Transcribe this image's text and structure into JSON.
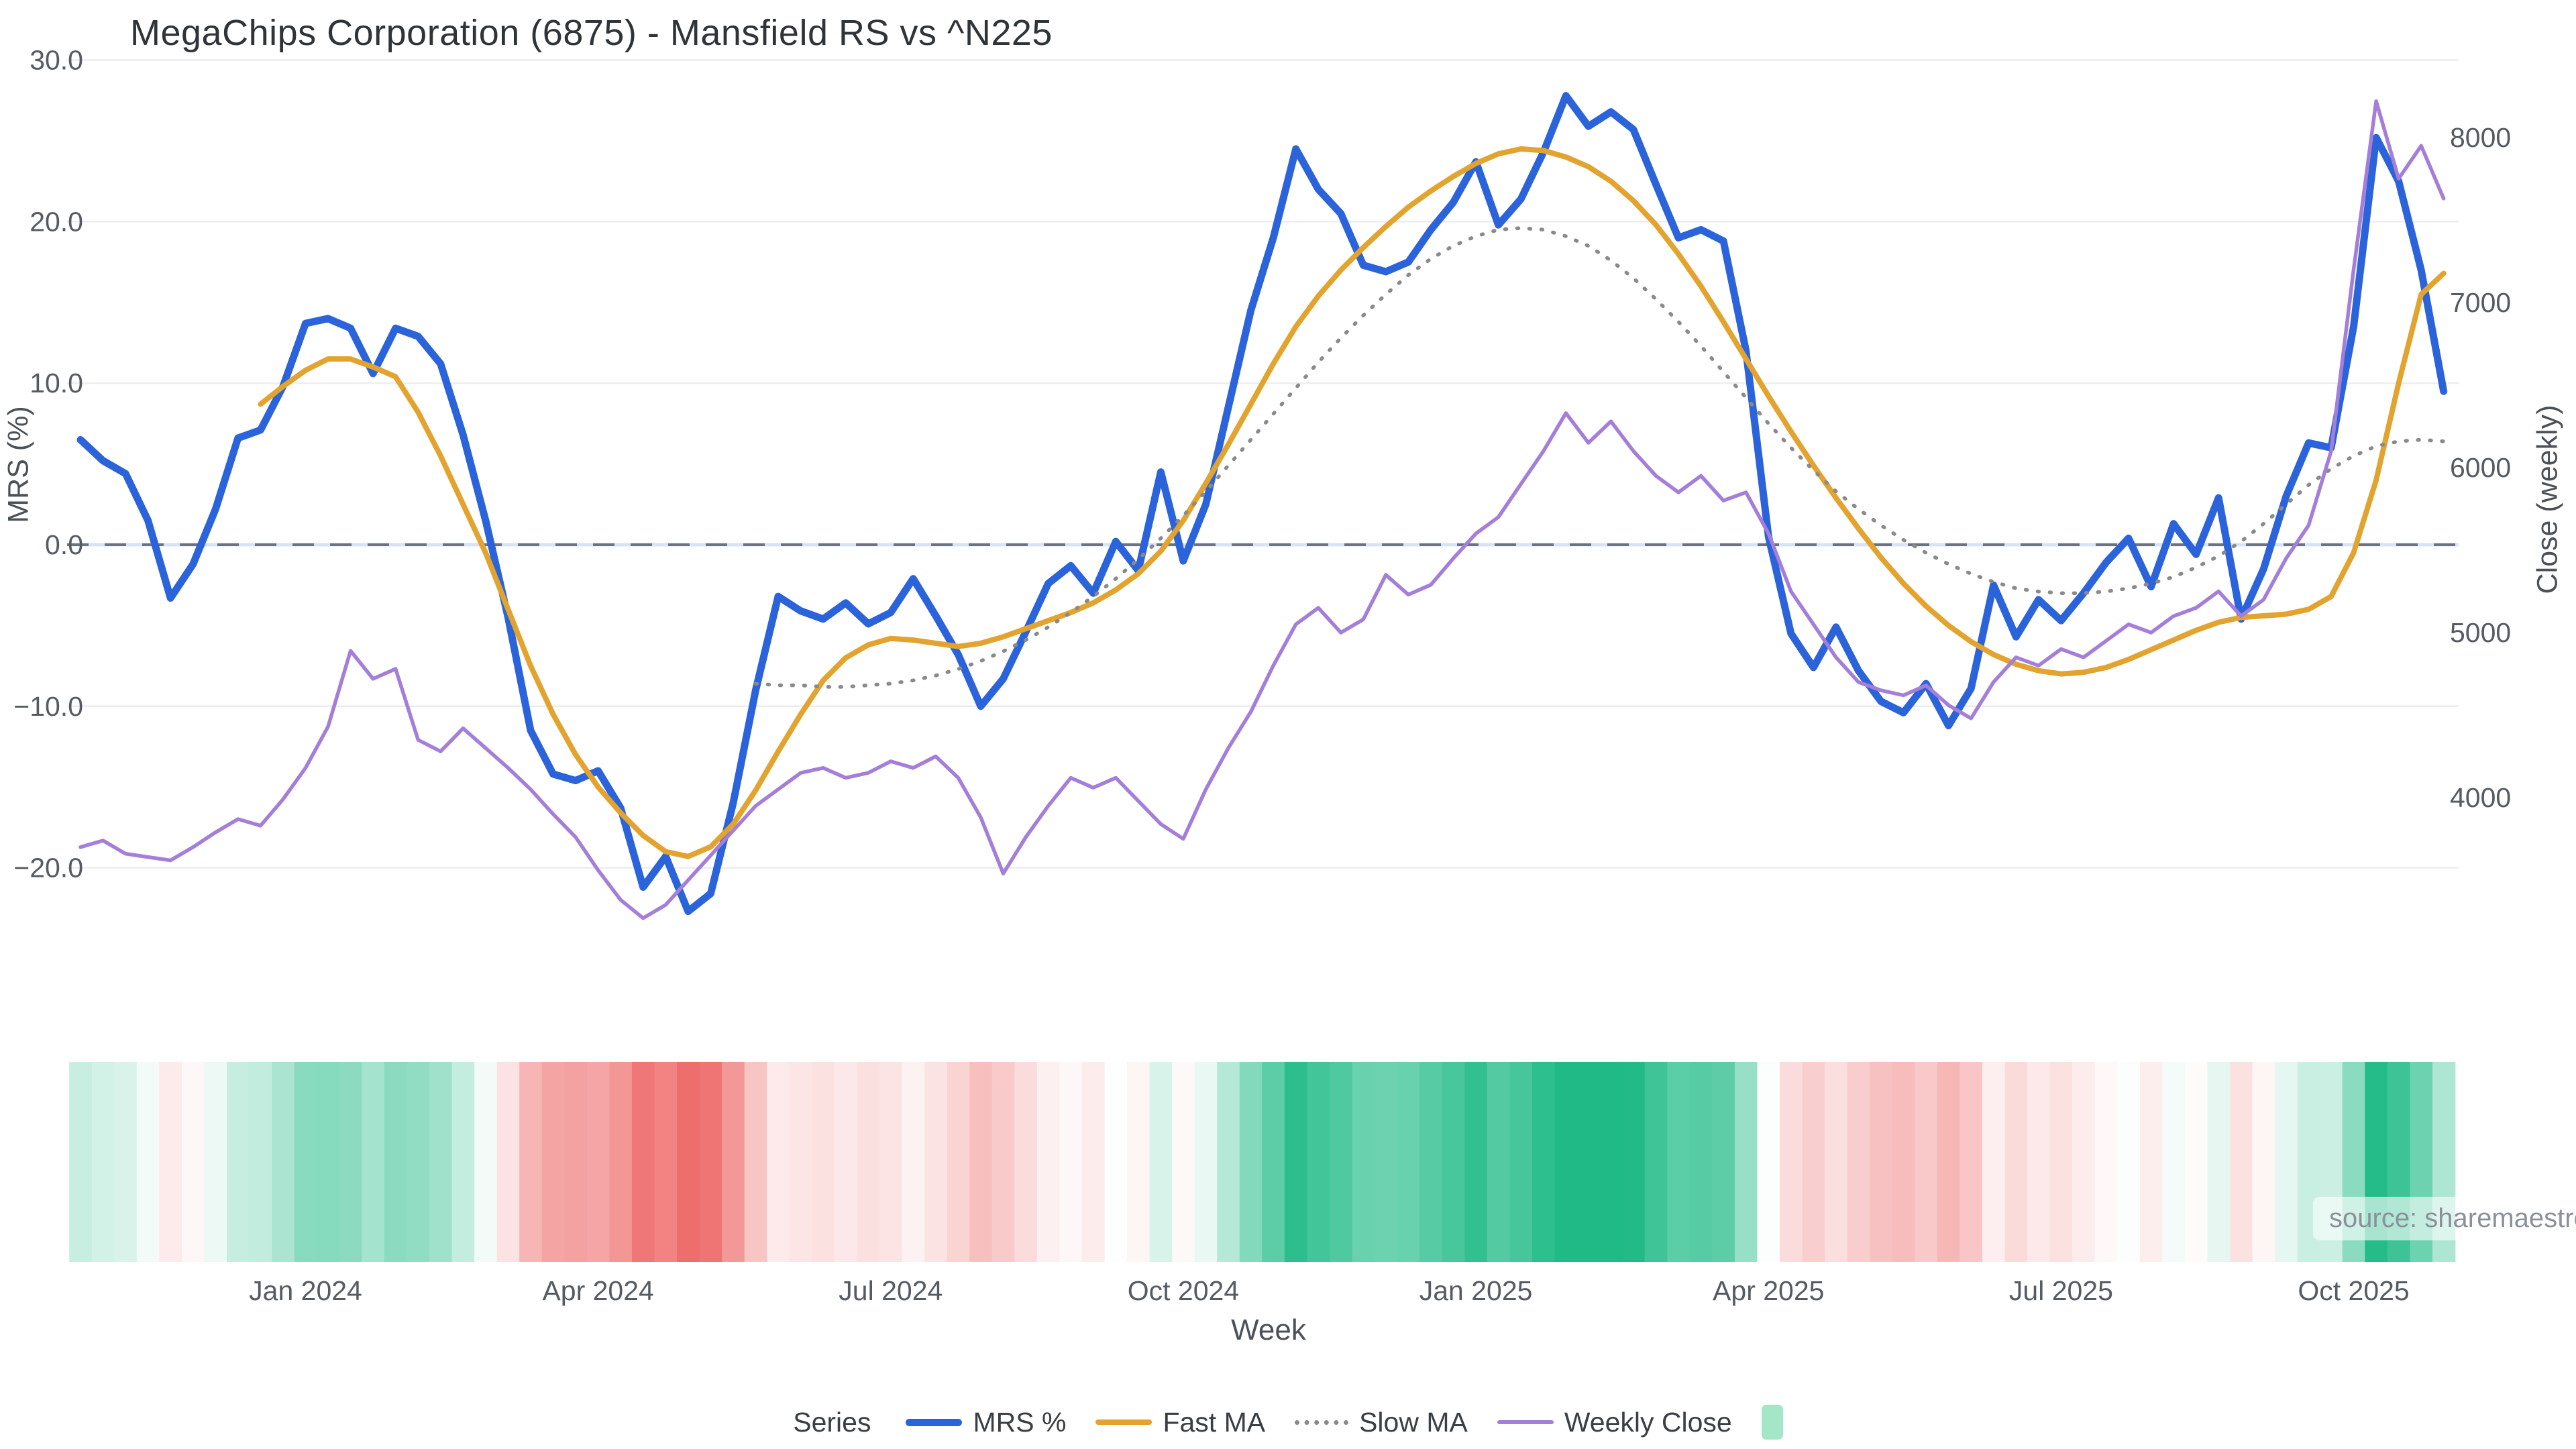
{
  "header": {
    "title": "MegaChips Corporation (6875) - Mansfield RS vs ^N225"
  },
  "watermark": {
    "text": "source: sharemaestro.com"
  },
  "legend": {
    "label": "Series",
    "items": [
      {
        "label": "MRS %",
        "color": "#2b63db",
        "style": "line",
        "thickness": 11
      },
      {
        "label": "Fast MA",
        "color": "#e2a32f",
        "style": "line",
        "thickness": 8
      },
      {
        "label": "Slow MA",
        "color": "#8a8a8a",
        "style": "dotted",
        "thickness": 6
      },
      {
        "label": "Weekly Close",
        "color": "#a47fd9",
        "style": "line",
        "thickness": 6
      },
      {
        "label": "",
        "color": "#a5e6c8",
        "style": "block"
      }
    ]
  },
  "chart_data": {
    "type": "line",
    "title": "MegaChips Corporation (6875) - Mansfield RS vs ^N225",
    "xlabel": "Week",
    "grid": true,
    "zero_line": {
      "show": true,
      "dash_color": "#6b7280",
      "underlay_color": "#d7e3f8"
    },
    "left_axis": {
      "label": "MRS (%)",
      "ticks": [
        30,
        20,
        10,
        0,
        -10,
        -20
      ],
      "tick_labels": [
        "30.0",
        "20.0",
        "10.0",
        "0.0",
        "−10.0",
        "−20.0"
      ],
      "range": [
        -25,
        30
      ]
    },
    "right_axis": {
      "label": "Close (weekly)",
      "ticks": [
        8000,
        7000,
        6000,
        5000,
        4000
      ],
      "tick_labels": [
        "8000",
        "7000",
        "6000",
        "5000",
        "4000"
      ],
      "range": [
        3200,
        8300
      ]
    },
    "x_ticks": [
      {
        "index": 10,
        "label": "Jan 2024"
      },
      {
        "index": 23,
        "label": "Apr 2024"
      },
      {
        "index": 36,
        "label": "Jul 2024"
      },
      {
        "index": 49,
        "label": "Oct 2024"
      },
      {
        "index": 62,
        "label": "Jan 2025"
      },
      {
        "index": 75,
        "label": "Apr 2025"
      },
      {
        "index": 88,
        "label": "Jul 2025"
      },
      {
        "index": 101,
        "label": "Oct 2025"
      }
    ],
    "series": [
      {
        "name": "MRS %",
        "axis": "left",
        "color": "#2b63db",
        "width": 11,
        "dash": null,
        "values": [
          6.5,
          5.2,
          4.4,
          1.5,
          -3.3,
          -1.2,
          2.2,
          6.6,
          7.1,
          9.8,
          13.7,
          14.0,
          13.4,
          10.6,
          13.4,
          12.9,
          11.2,
          6.8,
          1.5,
          -4.5,
          -11.5,
          -14.2,
          -14.6,
          -14.0,
          -16.3,
          -21.2,
          -19.3,
          -22.7,
          -21.6,
          -16.0,
          -9.0,
          -3.2,
          -4.1,
          -4.6,
          -3.6,
          -4.9,
          -4.2,
          -2.1,
          -4.4,
          -6.8,
          -10.0,
          -8.3,
          -5.4,
          -2.4,
          -1.3,
          -3.0,
          0.2,
          -1.6,
          4.5,
          -1.0,
          2.5,
          8.5,
          14.5,
          19.0,
          24.5,
          22.0,
          20.5,
          17.3,
          16.9,
          17.5,
          19.5,
          21.2,
          23.7,
          19.8,
          21.4,
          24.3,
          27.8,
          25.9,
          26.8,
          25.7,
          22.3,
          19.0,
          19.5,
          18.8,
          12.0,
          0.5,
          -5.5,
          -7.6,
          -5.1,
          -7.8,
          -9.7,
          -10.4,
          -8.6,
          -11.2,
          -8.9,
          -2.5,
          -5.7,
          -3.4,
          -4.7,
          -3.0,
          -1.1,
          0.4,
          -2.6,
          1.3,
          -0.6,
          2.9,
          -4.6,
          -1.5,
          3.0,
          6.3,
          6.0,
          13.5,
          25.2,
          22.5,
          17.0,
          9.5
        ]
      },
      {
        "name": "Fast MA",
        "axis": "left",
        "color": "#e2a32f",
        "width": 8,
        "dash": null,
        "values": [
          null,
          null,
          null,
          null,
          null,
          null,
          null,
          null,
          8.7,
          9.8,
          10.8,
          11.5,
          11.5,
          11.0,
          10.4,
          8.2,
          5.5,
          2.5,
          -0.5,
          -4.0,
          -7.5,
          -10.5,
          -13.0,
          -15.0,
          -16.6,
          -18.0,
          -19.0,
          -19.3,
          -18.7,
          -17.3,
          -15.2,
          -12.8,
          -10.5,
          -8.4,
          -7.0,
          -6.2,
          -5.8,
          -5.9,
          -6.1,
          -6.3,
          -6.1,
          -5.7,
          -5.2,
          -4.7,
          -4.2,
          -3.6,
          -2.8,
          -1.8,
          -0.4,
          1.5,
          3.8,
          6.2,
          8.7,
          11.2,
          13.5,
          15.4,
          17.0,
          18.4,
          19.7,
          20.9,
          21.9,
          22.8,
          23.6,
          24.2,
          24.5,
          24.4,
          24.0,
          23.4,
          22.5,
          21.3,
          19.8,
          18.0,
          16.0,
          13.8,
          11.5,
          9.2,
          7.0,
          4.9,
          2.9,
          1.0,
          -0.8,
          -2.4,
          -3.8,
          -5.0,
          -6.0,
          -6.8,
          -7.4,
          -7.8,
          -8.0,
          -7.9,
          -7.6,
          -7.1,
          -6.5,
          -5.9,
          -5.3,
          -4.8,
          -4.5,
          -4.4,
          -4.3,
          -4.0,
          -3.2,
          -0.5,
          4.0,
          10.0,
          15.5,
          16.8
        ]
      },
      {
        "name": "Slow MA",
        "axis": "left",
        "color": "#8a8a8a",
        "width": 5.5,
        "dash": "2 16",
        "values": [
          null,
          null,
          null,
          null,
          null,
          null,
          null,
          null,
          null,
          null,
          null,
          null,
          null,
          null,
          null,
          null,
          null,
          null,
          null,
          null,
          null,
          null,
          null,
          null,
          null,
          null,
          null,
          null,
          null,
          null,
          -8.6,
          -8.7,
          -8.7,
          -8.8,
          -8.8,
          -8.7,
          -8.6,
          -8.4,
          -8.1,
          -7.7,
          -7.2,
          -6.6,
          -5.9,
          -5.1,
          -4.2,
          -3.2,
          -2.1,
          -0.9,
          0.4,
          1.8,
          3.3,
          4.9,
          6.5,
          8.1,
          9.7,
          11.3,
          12.8,
          14.2,
          15.5,
          16.7,
          17.7,
          18.5,
          19.1,
          19.5,
          19.6,
          19.5,
          19.1,
          18.5,
          17.6,
          16.5,
          15.2,
          13.8,
          12.3,
          10.7,
          9.1,
          7.5,
          6.0,
          4.6,
          3.3,
          2.2,
          1.2,
          0.3,
          -0.5,
          -1.2,
          -1.8,
          -2.3,
          -2.7,
          -2.9,
          -3.0,
          -3.0,
          -2.9,
          -2.7,
          -2.4,
          -2.0,
          -1.4,
          -0.7,
          0.2,
          1.3,
          2.5,
          3.7,
          4.7,
          5.5,
          6.1,
          6.4,
          6.5,
          6.4
        ]
      },
      {
        "name": "Weekly Close",
        "axis": "right",
        "color": "#a47fd9",
        "width": 5.5,
        "dash": null,
        "values": [
          3700,
          3740,
          3660,
          3640,
          3620,
          3700,
          3790,
          3870,
          3830,
          3990,
          4180,
          4430,
          4890,
          4720,
          4780,
          4350,
          4280,
          4420,
          4300,
          4180,
          4050,
          3900,
          3760,
          3560,
          3380,
          3270,
          3350,
          3500,
          3650,
          3800,
          3950,
          4050,
          4150,
          4180,
          4120,
          4150,
          4220,
          4180,
          4250,
          4120,
          3880,
          3540,
          3760,
          3950,
          4120,
          4060,
          4120,
          3980,
          3840,
          3750,
          4050,
          4300,
          4520,
          4800,
          5050,
          5150,
          5000,
          5080,
          5350,
          5230,
          5290,
          5450,
          5600,
          5700,
          5900,
          6100,
          6330,
          6150,
          6280,
          6100,
          5950,
          5850,
          5950,
          5800,
          5850,
          5600,
          5250,
          5050,
          4850,
          4700,
          4650,
          4620,
          4680,
          4560,
          4480,
          4700,
          4850,
          4800,
          4900,
          4850,
          4950,
          5050,
          5000,
          5100,
          5150,
          5250,
          5100,
          5200,
          5450,
          5650,
          6100,
          7200,
          8220,
          7750,
          7950,
          7630
        ]
      }
    ],
    "heatmap": {
      "source_series": "MRS %",
      "positive_color": "#1fba86",
      "negative_color": "#ec5858",
      "max_abs": 26
    }
  }
}
